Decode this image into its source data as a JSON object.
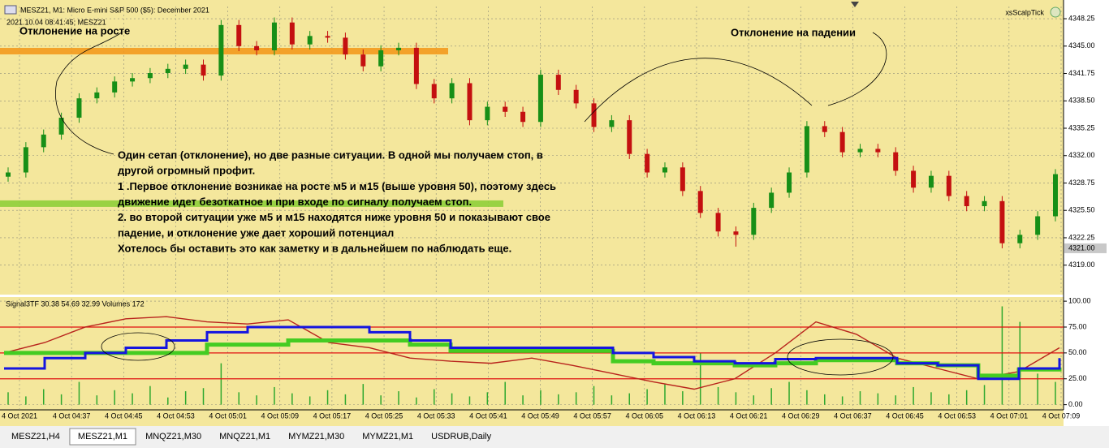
{
  "header": {
    "symbol": "MESZ21, M1:  Micro E-mini S&P 500 ($5): December 2021",
    "timestamp": "2021.10.04 08:41:45; MESZ21",
    "expert": "xsScalpTick"
  },
  "annotations": {
    "rise": "Отклонение на росте",
    "fall": "Отклонение на падении",
    "note": [
      "Один сетап (отклонение), но две разные ситуации.  В одной мы получаем стоп, в",
      "другой огромный профит.",
      "1 .Первое отклонение возникае на росте м5 и м15 (выше уровня 50), поэтому здесь",
      "движение идет безоткатное и при входе по сигналу получаем стоп.",
      "2. во второй ситуации уже м5 и м15  находятся ниже уровня 50 и показывают свое",
      "падение, и отклонение уже дает хороший потенциал",
      "Хотелось бы оставить это как заметку и в дальнейшем по наблюдать еще."
    ]
  },
  "chart_data": [
    {
      "type": "candlestick",
      "ylim": [
        4315.6,
        4349.7
      ],
      "grid": true,
      "up_color": "#178f17",
      "down_color": "#c41010",
      "yticks": [
        {
          "value": 4348.25,
          "label": "4348.25"
        },
        {
          "value": 4345,
          "label": "4345.00"
        },
        {
          "value": 4341.75,
          "label": "4341.75"
        },
        {
          "value": 4338.5,
          "label": "4338.50"
        },
        {
          "value": 4335.25,
          "label": "4335.25"
        },
        {
          "value": 4332,
          "label": "4332.00"
        },
        {
          "value": 4328.75,
          "label": "4328.75"
        },
        {
          "value": 4325.5,
          "label": "4325.50"
        },
        {
          "value": 4322.25,
          "label": "4322.25"
        },
        {
          "value": 4319,
          "label": "4319.00"
        }
      ],
      "last_price": {
        "value": 4321,
        "label": "4321.00"
      },
      "levels": [
        {
          "price": 4344.4,
          "color": "#f39a1e"
        },
        {
          "price": 4326.3,
          "color": "#8fcf3a"
        }
      ],
      "xlabels": [
        "4 Oct 2021",
        "4 Oct 04:37",
        "4 Oct 04:45",
        "4 Oct 04:53",
        "4 Oct 05:01",
        "4 Oct 05:09",
        "4 Oct 05:17",
        "4 Oct 05:25",
        "4 Oct 05:33",
        "4 Oct 05:41",
        "4 Oct 05:49",
        "4 Oct 05:57",
        "4 Oct 06:05",
        "4 Oct 06:13",
        "4 Oct 06:21",
        "4 Oct 06:29",
        "4 Oct 06:37",
        "4 Oct 06:45",
        "4 Oct 06:53",
        "4 Oct 07:01",
        "4 Oct 07:09"
      ],
      "candles": [
        [
          4329.5,
          4330.6,
          4328.9,
          4330.0
        ],
        [
          4330.0,
          4333.6,
          4329.4,
          4333.0
        ],
        [
          4333.0,
          4335.1,
          4332.4,
          4334.5
        ],
        [
          4334.5,
          4337.1,
          4333.9,
          4336.5
        ],
        [
          4336.5,
          4339.4,
          4335.9,
          4338.8
        ],
        [
          4338.8,
          4340.1,
          4338.2,
          4339.5
        ],
        [
          4339.5,
          4341.4,
          4338.9,
          4340.8
        ],
        [
          4340.8,
          4341.8,
          4340.2,
          4341.2
        ],
        [
          4341.2,
          4342.4,
          4340.6,
          4341.8
        ],
        [
          4341.8,
          4342.9,
          4341.2,
          4342.3
        ],
        [
          4342.3,
          4343.4,
          4341.7,
          4342.8
        ],
        [
          4342.8,
          4343.4,
          4340.9,
          4341.5
        ],
        [
          4341.5,
          4348.1,
          4340.9,
          4347.5
        ],
        [
          4347.5,
          4348.1,
          4344.4,
          4345.0
        ],
        [
          4345.0,
          4345.6,
          4343.9,
          4344.5
        ],
        [
          4344.5,
          4348.4,
          4343.9,
          4347.8
        ],
        [
          4347.8,
          4348.4,
          4344.6,
          4345.2
        ],
        [
          4345.2,
          4346.8,
          4344.6,
          4346.2
        ],
        [
          4346.2,
          4346.8,
          4345.4,
          4346.0
        ],
        [
          4346.0,
          4346.6,
          4343.4,
          4344.0
        ],
        [
          4344.0,
          4344.6,
          4342.0,
          4342.6
        ],
        [
          4342.6,
          4345.1,
          4342.0,
          4344.5
        ],
        [
          4344.5,
          4345.4,
          4343.9,
          4344.8
        ],
        [
          4344.8,
          4345.4,
          4339.9,
          4340.5
        ],
        [
          4340.5,
          4341.1,
          4338.2,
          4338.8
        ],
        [
          4338.8,
          4341.2,
          4338.2,
          4340.6
        ],
        [
          4340.6,
          4341.2,
          4335.6,
          4336.2
        ],
        [
          4336.2,
          4338.4,
          4335.6,
          4337.8
        ],
        [
          4337.8,
          4338.4,
          4336.6,
          4337.2
        ],
        [
          4337.2,
          4337.8,
          4335.4,
          4336.0
        ],
        [
          4336.0,
          4342.2,
          4335.4,
          4341.6
        ],
        [
          4341.6,
          4342.2,
          4339.2,
          4339.8
        ],
        [
          4339.8,
          4340.4,
          4337.6,
          4338.2
        ],
        [
          4338.2,
          4338.8,
          4334.8,
          4335.4
        ],
        [
          4335.4,
          4336.8,
          4334.8,
          4336.2
        ],
        [
          4336.2,
          4336.8,
          4331.6,
          4332.2
        ],
        [
          4332.2,
          4332.8,
          4329.4,
          4330.0
        ],
        [
          4330.0,
          4331.2,
          4329.4,
          4330.6
        ],
        [
          4330.6,
          4331.2,
          4327.2,
          4327.8
        ],
        [
          4327.8,
          4328.4,
          4324.6,
          4325.2
        ],
        [
          4325.2,
          4325.8,
          4322.4,
          4323.0
        ],
        [
          4323.0,
          4323.6,
          4321.2,
          4322.6
        ],
        [
          4322.6,
          4326.4,
          4322.0,
          4325.8
        ],
        [
          4325.8,
          4328.2,
          4325.2,
          4327.6
        ],
        [
          4327.6,
          4330.6,
          4327.0,
          4330.0
        ],
        [
          4330.0,
          4336.1,
          4329.4,
          4335.5
        ],
        [
          4335.5,
          4336.1,
          4334.2,
          4334.8
        ],
        [
          4334.8,
          4335.4,
          4331.8,
          4332.4
        ],
        [
          4332.4,
          4333.4,
          4331.8,
          4332.8
        ],
        [
          4332.8,
          4333.4,
          4331.8,
          4332.4
        ],
        [
          4332.4,
          4333.0,
          4329.6,
          4330.2
        ],
        [
          4330.2,
          4330.8,
          4327.6,
          4328.2
        ],
        [
          4328.2,
          4330.2,
          4327.6,
          4329.6
        ],
        [
          4329.6,
          4330.2,
          4326.6,
          4327.2
        ],
        [
          4327.2,
          4327.8,
          4325.4,
          4326.0
        ],
        [
          4326.0,
          4327.2,
          4325.4,
          4326.6
        ],
        [
          4326.6,
          4327.2,
          4321.0,
          4321.6
        ],
        [
          4321.6,
          4323.2,
          4321.0,
          4322.6
        ],
        [
          4322.6,
          4325.4,
          4322.0,
          4324.8
        ],
        [
          4324.8,
          4330.4,
          4324.2,
          4329.8
        ]
      ]
    },
    {
      "type": "indicator",
      "title": "Signal3TF 30.38 54.69 32.99 Volumes 172",
      "ylim": [
        -5,
        104
      ],
      "grid": true,
      "yticks": [
        {
          "value": 100,
          "label": "100.00"
        },
        {
          "value": 75,
          "label": "75.00"
        },
        {
          "value": 50,
          "label": "50.00"
        },
        {
          "value": 25,
          "label": "25.00"
        },
        {
          "value": 0,
          "label": "0.00"
        }
      ],
      "levels": [
        75,
        50,
        25
      ],
      "level_color": "#e01010",
      "series": [
        {
          "color": "#b8231c",
          "shape": "line",
          "values": [
            50,
            60,
            75,
            83,
            85,
            80,
            78,
            82,
            60,
            55,
            45,
            42,
            40,
            45,
            38,
            30,
            22,
            15,
            25,
            50,
            80,
            68,
            45,
            35,
            25,
            32,
            55
          ]
        },
        {
          "color": "#44cc22",
          "shape": "step",
          "values": [
            50,
            50,
            50,
            50,
            50,
            58,
            58,
            62,
            62,
            62,
            58,
            52,
            52,
            52,
            52,
            42,
            40,
            40,
            38,
            40,
            43,
            43,
            40,
            38,
            28,
            34,
            36
          ]
        },
        {
          "color": "#1515e0",
          "shape": "step",
          "values": [
            35,
            45,
            50,
            55,
            62,
            70,
            75,
            75,
            75,
            70,
            62,
            55,
            55,
            55,
            55,
            50,
            46,
            42,
            40,
            44,
            45,
            45,
            40,
            38,
            25,
            35,
            45
          ]
        }
      ],
      "volumes": {
        "color": "#2ea82e",
        "values": [
          12,
          8,
          15,
          10,
          22,
          9,
          14,
          11,
          18,
          7,
          13,
          16,
          40,
          12,
          9,
          17,
          11,
          8,
          14,
          10,
          20,
          9,
          13,
          7,
          15,
          11,
          8,
          12,
          22,
          9,
          14,
          10,
          12,
          18,
          9,
          11,
          15,
          20,
          13,
          50,
          17,
          12,
          9,
          16,
          22,
          14,
          10,
          8,
          13,
          11,
          9,
          17,
          12,
          10,
          14,
          19,
          95,
          80,
          30,
          22
        ]
      }
    }
  ],
  "tabs": [
    "MESZ21,H4",
    "MESZ21,M1",
    "MNQZ21,M30",
    "MNQZ21,M1",
    "MYMZ21,M30",
    "MYMZ21,M1",
    "USDRUB,Daily"
  ],
  "active_tab": 1
}
